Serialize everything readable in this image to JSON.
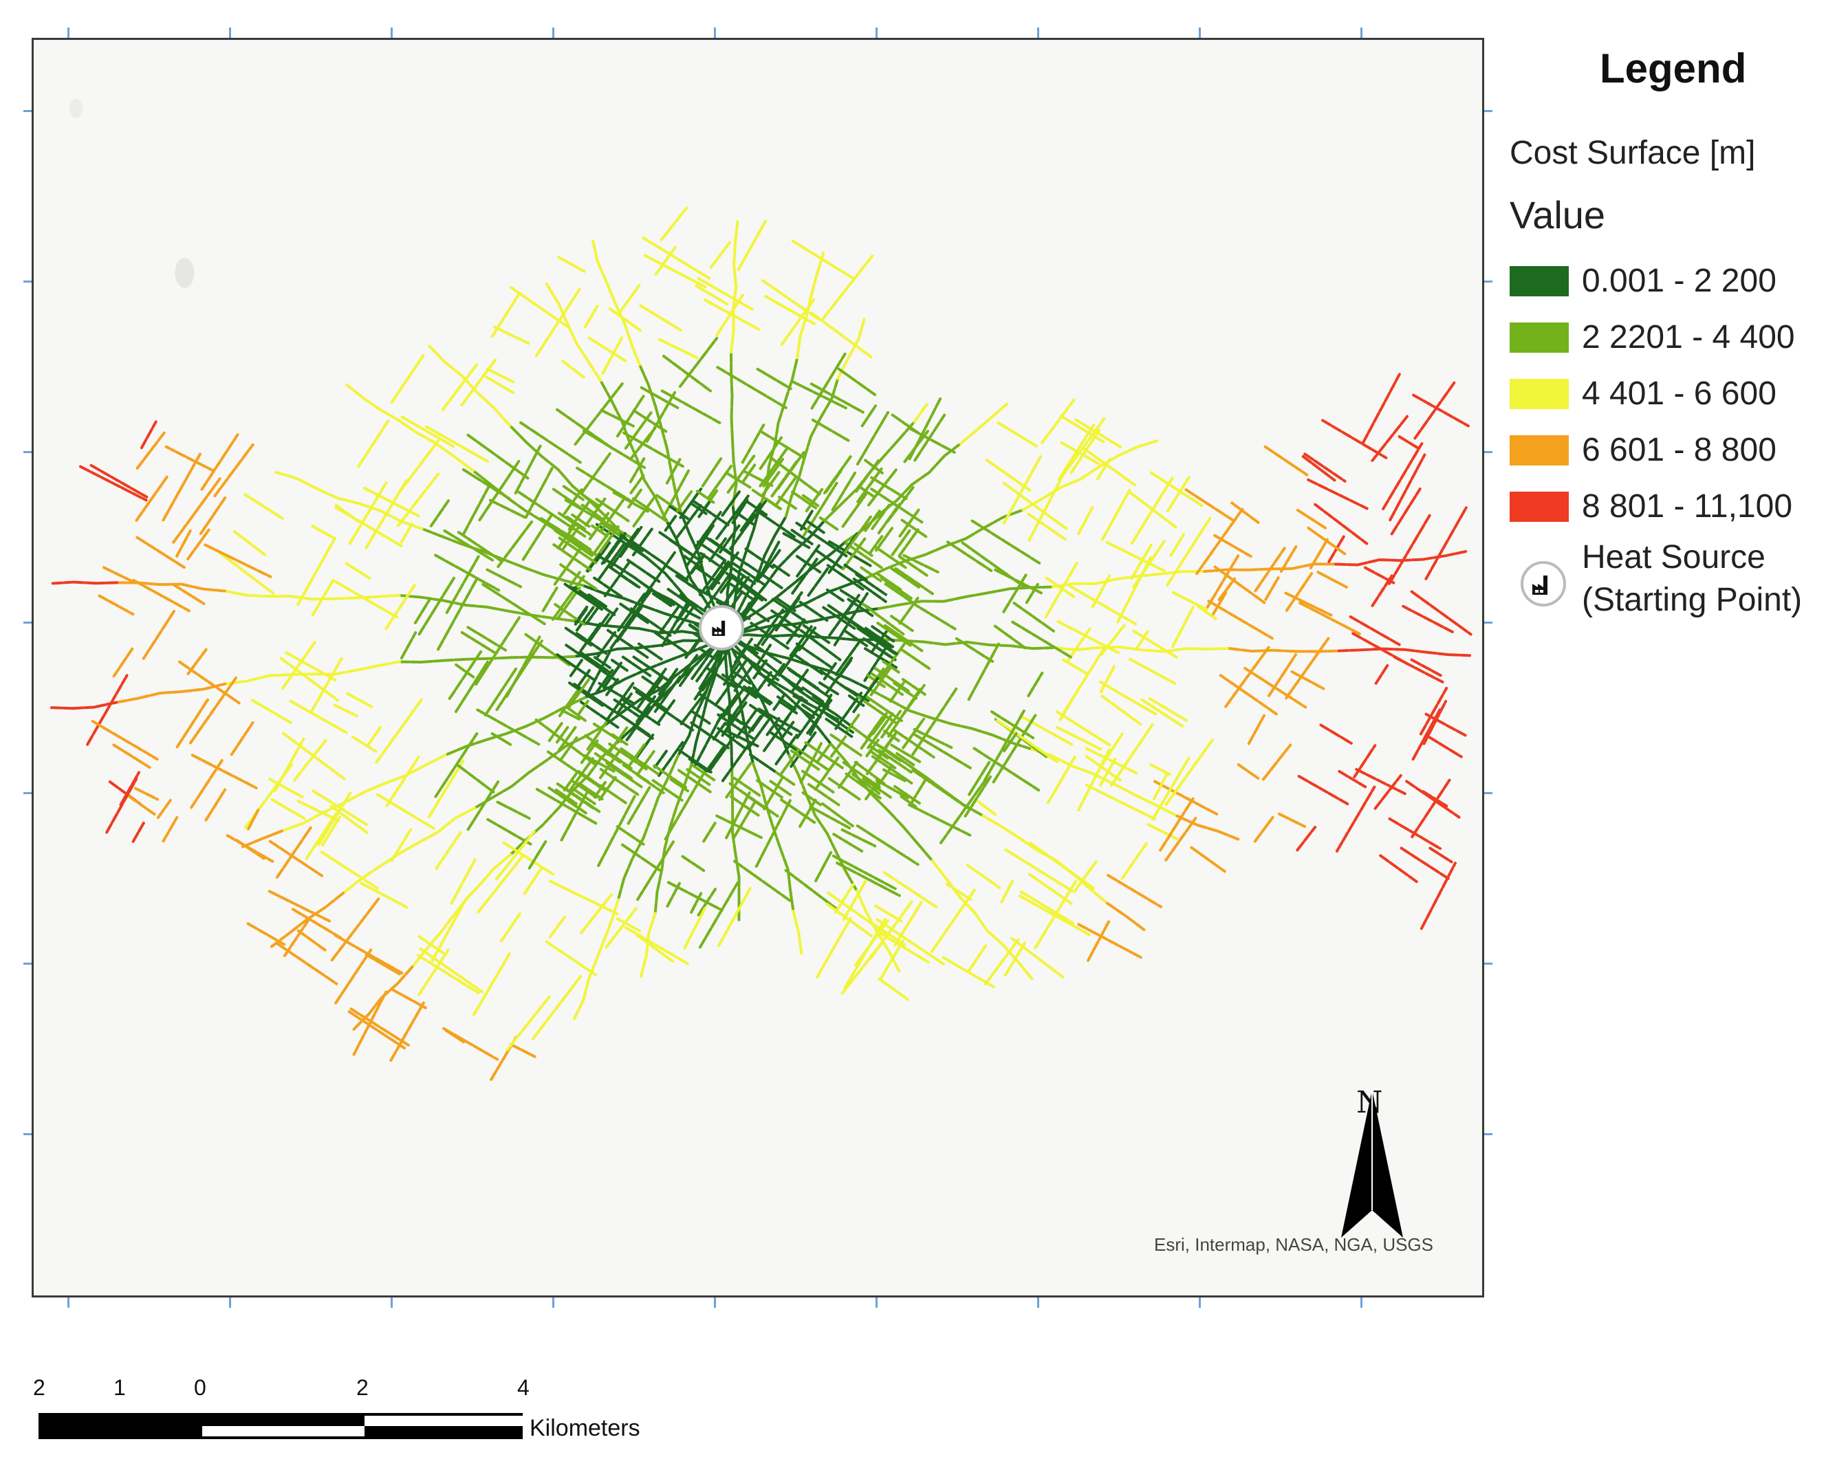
{
  "legend": {
    "title": "Legend",
    "layer_name": "Cost Surface [m]",
    "field_name": "Value",
    "classes": [
      {
        "label": "0.001 - 2 200",
        "color": "#1d6b1f"
      },
      {
        "label": "2 2201 - 4 400",
        "color": "#74b21c"
      },
      {
        "label": "4 401 - 6 600",
        "color": "#f1f53a"
      },
      {
        "label": "6 601 - 8 800",
        "color": "#f4a21e"
      },
      {
        "label": "8 801 - 11,100",
        "color": "#ee3b22"
      }
    ],
    "heat_source_line1": "Heat Source",
    "heat_source_line2": "(Starting Point)",
    "heat_source_icon": "factory-icon"
  },
  "map": {
    "north_label": "N",
    "attribution": "Esri, Intermap, NASA, NGA, USGS"
  },
  "scale_bar": {
    "labels": [
      "2",
      "1",
      "0",
      "2",
      "4"
    ],
    "unit": "Kilometers"
  }
}
